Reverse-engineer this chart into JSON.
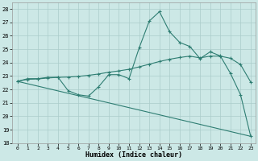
{
  "xlabel": "Humidex (Indice chaleur)",
  "bg_color": "#cce8e6",
  "grid_color": "#aaccca",
  "line_color": "#2e7d72",
  "xlim": [
    -0.5,
    23.5
  ],
  "ylim": [
    18,
    28.5
  ],
  "yticks": [
    18,
    19,
    20,
    21,
    22,
    23,
    24,
    25,
    26,
    27,
    28
  ],
  "xticks": [
    0,
    1,
    2,
    3,
    4,
    5,
    6,
    7,
    8,
    9,
    10,
    11,
    12,
    13,
    14,
    15,
    16,
    17,
    18,
    19,
    20,
    21,
    22,
    23
  ],
  "series1_x": [
    0,
    1,
    2,
    3,
    4,
    5,
    6,
    7,
    8,
    9,
    10,
    11,
    12,
    13,
    14,
    15,
    16,
    17,
    18,
    19,
    20,
    21,
    22,
    23
  ],
  "series1_y": [
    22.6,
    22.8,
    22.8,
    22.9,
    22.9,
    21.9,
    21.6,
    21.5,
    22.2,
    23.1,
    23.1,
    22.8,
    25.1,
    27.1,
    27.8,
    26.3,
    25.5,
    25.2,
    24.3,
    24.8,
    24.5,
    23.2,
    21.6,
    18.5
  ],
  "series2_x": [
    0,
    1,
    2,
    3,
    4,
    5,
    6,
    7,
    8,
    9,
    10,
    11,
    12,
    13,
    14,
    15,
    16,
    17,
    18,
    19,
    20,
    21,
    22,
    23
  ],
  "series2_y": [
    22.6,
    22.75,
    22.78,
    22.85,
    22.9,
    22.92,
    22.97,
    23.05,
    23.15,
    23.28,
    23.38,
    23.5,
    23.68,
    23.88,
    24.08,
    24.25,
    24.38,
    24.48,
    24.35,
    24.48,
    24.48,
    24.32,
    23.85,
    22.55
  ],
  "series3_x": [
    0,
    23
  ],
  "series3_y": [
    22.6,
    18.5
  ],
  "marker_style": "+"
}
